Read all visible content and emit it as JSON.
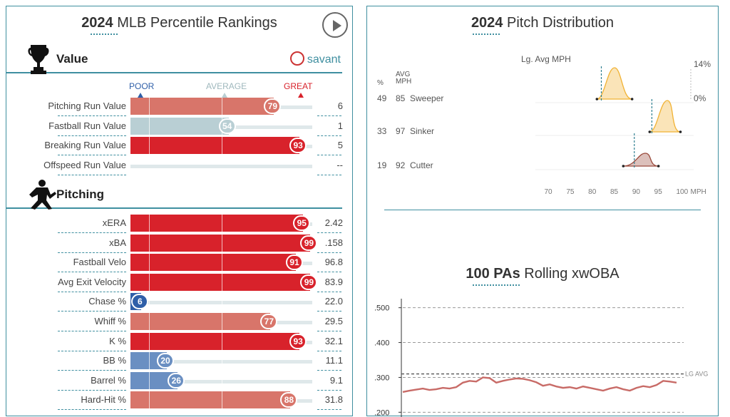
{
  "left": {
    "title_bold": "2024",
    "title_rest": " MLB Percentile Rankings",
    "play_icon": "play-icon",
    "savant_label": "savant",
    "value_section": {
      "label": "Value",
      "icon": "trophy-icon"
    },
    "pitching_section": {
      "label": "Pitching",
      "icon": "pitcher-icon"
    },
    "scale": {
      "poor": "POOR",
      "average": "AVERAGE",
      "great": "GREAT"
    },
    "value_rows": [
      {
        "label": "Pitching Run Value",
        "percentile": 79,
        "value": "6",
        "bubble": "79"
      },
      {
        "label": "Fastball Run Value",
        "percentile": 54,
        "value": "1",
        "bubble": "54"
      },
      {
        "label": "Breaking Run Value",
        "percentile": 93,
        "value": "5",
        "bubble": "93"
      },
      {
        "label": "Offspeed Run Value",
        "percentile": null,
        "value": "--",
        "bubble": ""
      }
    ],
    "pitching_rows": [
      {
        "label": "xERA",
        "percentile": 95,
        "value": "2.42",
        "bubble": "95"
      },
      {
        "label": "xBA",
        "percentile": 99,
        "value": ".158",
        "bubble": "99"
      },
      {
        "label": "Fastball Velo",
        "percentile": 91,
        "value": "96.8",
        "bubble": "91"
      },
      {
        "label": "Avg Exit Velocity",
        "percentile": 99,
        "value": "83.9",
        "bubble": "99"
      },
      {
        "label": "Chase %",
        "percentile": 6,
        "value": "22.0",
        "bubble": "6"
      },
      {
        "label": "Whiff %",
        "percentile": 77,
        "value": "29.5",
        "bubble": "77"
      },
      {
        "label": "K %",
        "percentile": 93,
        "value": "32.1",
        "bubble": "93"
      },
      {
        "label": "BB %",
        "percentile": 20,
        "value": "11.1",
        "bubble": "20"
      },
      {
        "label": "Barrel %",
        "percentile": 26,
        "value": "9.1",
        "bubble": "26"
      },
      {
        "label": "Hard-Hit %",
        "percentile": 88,
        "value": "31.8",
        "bubble": "88"
      }
    ],
    "colors": {
      "great": "#d8222b",
      "good": "#d8756a",
      "average": "#b9cfd4",
      "poor": "#6a8fc2",
      "worst": "#2f5fa8",
      "accent": "#3f8fa0"
    }
  },
  "right": {
    "dist_title_bold": "2024",
    "dist_title_rest": " Pitch Distribution",
    "dist_header_pct": "%",
    "dist_header_avg": "AVG",
    "dist_header_mph": "MPH",
    "dist_lg_avg_label": "Lg. Avg MPH",
    "dist_pct_top": "14%",
    "dist_pct_bottom": "0%",
    "rolling_title_bold": "100 PAs",
    "rolling_title_rest": " Rolling xwOBA",
    "rolling_lg_label": "LG AVG"
  },
  "chart_data": [
    {
      "type": "area",
      "title": "2024 Pitch Distribution",
      "xlabel": "MPH",
      "x_ticks": [
        70,
        75,
        80,
        85,
        90,
        95,
        100
      ],
      "xlim": [
        67,
        103
      ],
      "series": [
        {
          "name": "Sweeper",
          "pct": 49,
          "avg_mph": 85,
          "league_avg_mph": 82,
          "min": 81,
          "max": 89,
          "color": "#f1b233"
        },
        {
          "name": "Sinker",
          "pct": 33,
          "avg_mph": 97,
          "league_avg_mph": 93.5,
          "min": 93,
          "max": 100,
          "color": "#f1b233"
        },
        {
          "name": "Cutter",
          "pct": 19,
          "avg_mph": 92,
          "league_avg_mph": 89.5,
          "min": 87,
          "max": 95,
          "color": "#9a4a3c"
        }
      ]
    },
    {
      "type": "line",
      "title": "100 PAs Rolling xwOBA",
      "y_ticks": [
        ".500",
        ".400",
        ".300",
        ".200"
      ],
      "ylim": [
        0.17,
        0.53
      ],
      "league_avg": 0.31,
      "grid": true,
      "values": [
        0.258,
        0.262,
        0.265,
        0.268,
        0.264,
        0.266,
        0.27,
        0.268,
        0.272,
        0.285,
        0.29,
        0.288,
        0.3,
        0.298,
        0.285,
        0.29,
        0.294,
        0.297,
        0.296,
        0.292,
        0.286,
        0.276,
        0.28,
        0.274,
        0.27,
        0.272,
        0.268,
        0.274,
        0.27,
        0.266,
        0.262,
        0.268,
        0.272,
        0.266,
        0.262,
        0.27,
        0.275,
        0.272,
        0.278,
        0.29,
        0.288,
        0.285
      ]
    }
  ]
}
